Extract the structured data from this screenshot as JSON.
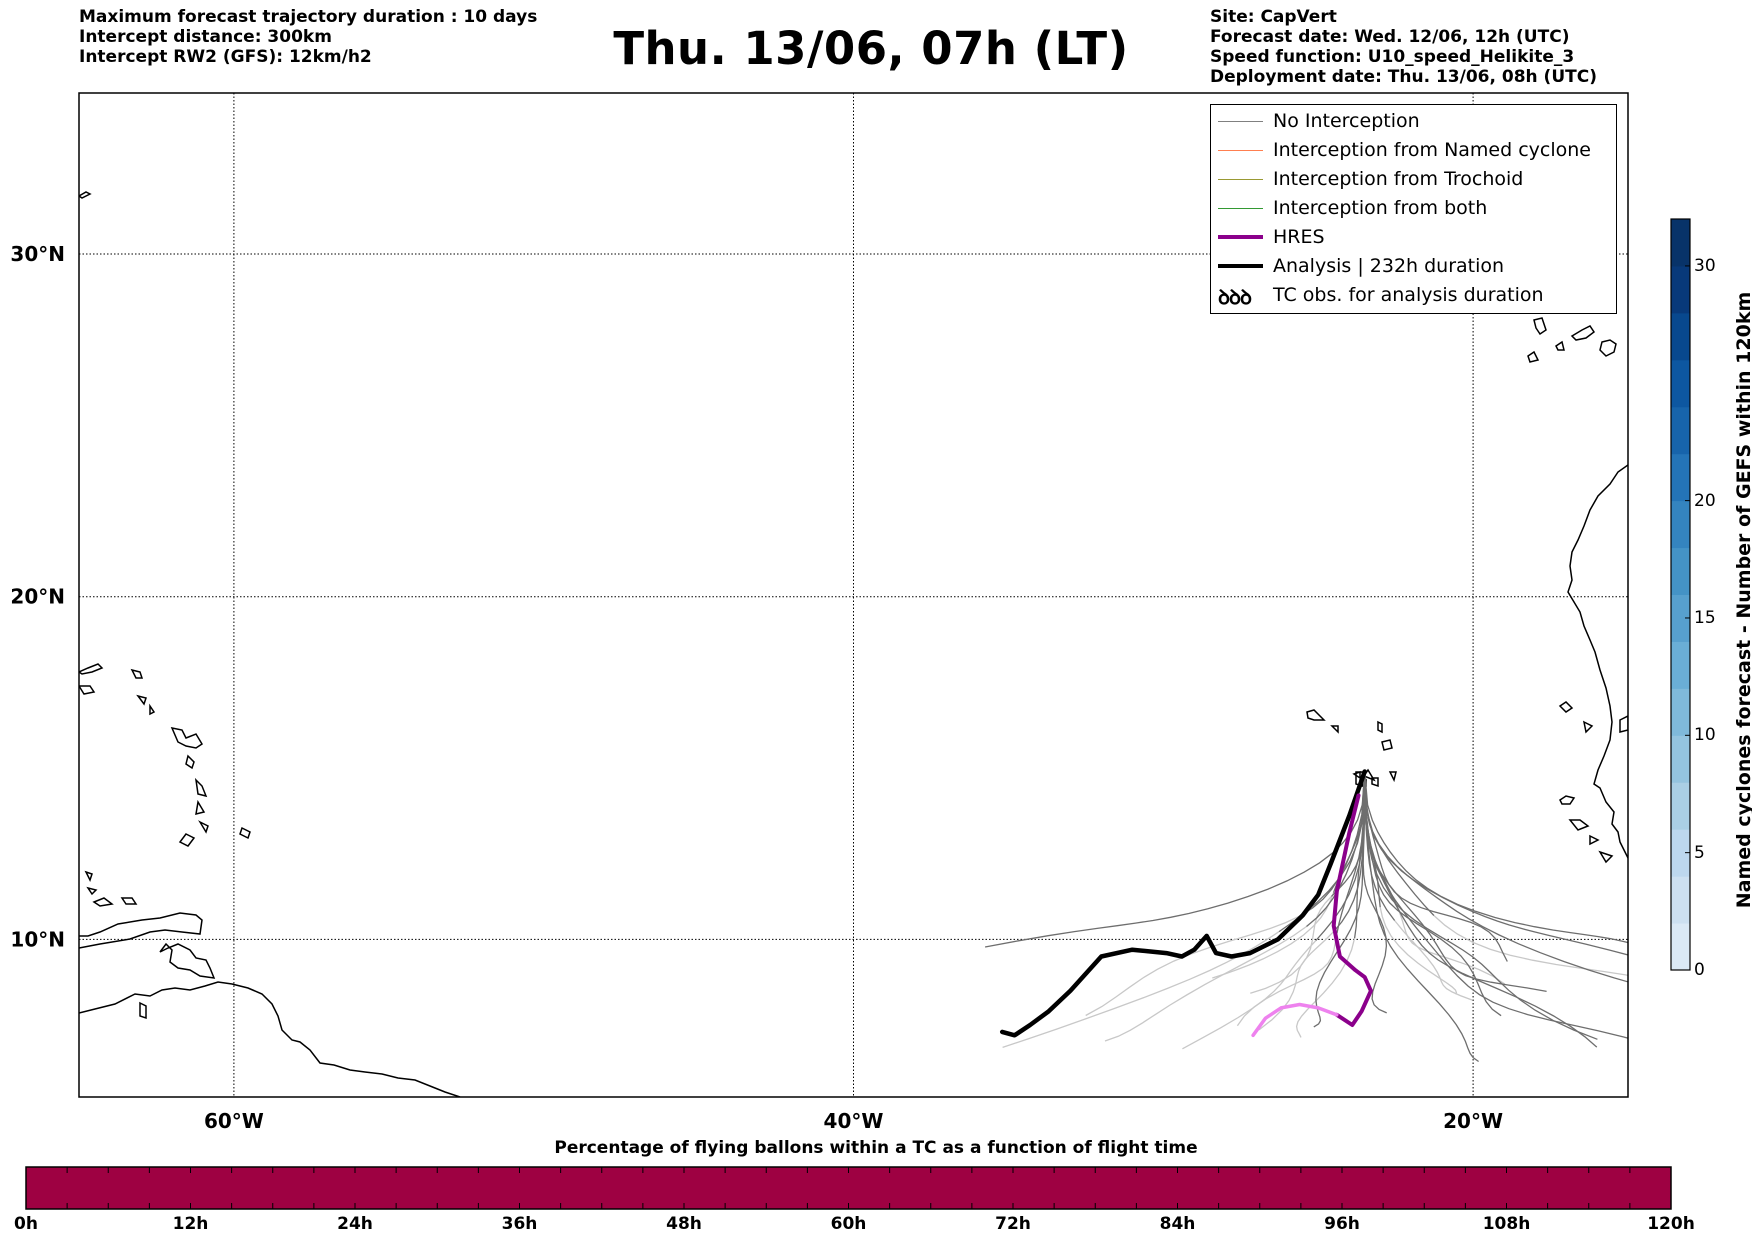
{
  "header": {
    "left_lines": [
      "Maximum forecast trajectory duration : 10 days",
      "Intercept distance: 300km",
      "Intercept RW2 (GFS):  12km/h2"
    ],
    "title": "Thu. 13/06, 07h (LT)",
    "right_lines": [
      "Site: CapVert",
      "Forecast date: Wed. 12/06, 12h (UTC)",
      "Speed function: U10_speed_Helikite_3",
      "Deployment date: Thu. 13/06, 08h (UTC)"
    ]
  },
  "map": {
    "lat_labels": [
      "30°N",
      "20°N",
      "10°N"
    ],
    "lon_labels": [
      "60°W",
      "40°W",
      "20°W"
    ],
    "lat_values": [
      30,
      20,
      10
    ],
    "lon_values": [
      -60,
      -40,
      -20
    ],
    "extent": {
      "lon_min": -65,
      "lon_max": -15,
      "lat_min": 5.4,
      "lat_max": 34.7
    },
    "site": {
      "name": "CapVert",
      "lon": -23.5,
      "lat": 14.9
    }
  },
  "legend": {
    "items": [
      {
        "label": "No Interception",
        "color": "#808080",
        "width": 1
      },
      {
        "label": "Interception from Named cyclone",
        "color": "#ff7f50",
        "width": 1.5
      },
      {
        "label": "Interception from Trochoid",
        "color": "#999933",
        "width": 1.5
      },
      {
        "label": "Interception from both",
        "color": "#339933",
        "width": 1.5
      },
      {
        "label": "HRES",
        "color": "#8b008b",
        "width": 4
      },
      {
        "label": "Analysis | 232h duration",
        "color": "#000000",
        "width": 4
      },
      {
        "label": "TC obs. for analysis duration",
        "color": "#000000",
        "icon": "cyclone-symbols"
      }
    ],
    "cyclone_glyph": "ꝺꝺꝺ"
  },
  "colors": {
    "flight_bar": "#9e0142",
    "hres": "#8b008b",
    "hres_end": "#ee82ee",
    "analysis": "#000000",
    "ensemble_dark": "#6e6e6e",
    "ensemble_light": "#c8c8c8"
  },
  "flight_colorbar": {
    "title": "Percentage of flying ballons within a TC as a function of flight time",
    "labels": [
      "0h",
      "12h",
      "24h",
      "36h",
      "48h",
      "60h",
      "72h",
      "84h",
      "96h",
      "108h",
      "120h"
    ]
  },
  "cyclone_colorbar": {
    "title": "Named cyclones forecast - Number of GEFS within 120km",
    "ticks": [
      "0",
      "5",
      "10",
      "15",
      "20",
      "30"
    ],
    "tick_values": [
      0,
      5,
      10,
      15,
      20,
      30
    ],
    "max": 32,
    "colors": [
      "#dbe9f6",
      "#cde0f1",
      "#bdd7ee",
      "#aacfe5",
      "#94c4df",
      "#7fb9da",
      "#6aaed6",
      "#57a0ce",
      "#4493c6",
      "#3484bf",
      "#2474b7",
      "#1764ab",
      "#0d57a1",
      "#08488e",
      "#08397a",
      "#083369"
    ]
  },
  "trajectories": {
    "analysis": [
      [
        -23.5,
        14.9
      ],
      [
        -24,
        13.6
      ],
      [
        -24.6,
        12.2
      ],
      [
        -25,
        11.3
      ],
      [
        -25.5,
        10.7
      ],
      [
        -26.3,
        10
      ],
      [
        -27.2,
        9.6
      ],
      [
        -27.8,
        9.5
      ],
      [
        -28.3,
        9.6
      ],
      [
        -28.6,
        10.1
      ],
      [
        -29,
        9.7
      ],
      [
        -29.4,
        9.5
      ],
      [
        -29.9,
        9.6
      ],
      [
        -31,
        9.7
      ],
      [
        -32,
        9.5
      ],
      [
        -33,
        8.5
      ],
      [
        -33.7,
        7.9
      ],
      [
        -34.3,
        7.5
      ],
      [
        -34.8,
        7.2
      ],
      [
        -35.2,
        7.3
      ]
    ],
    "hres": [
      [
        -23.7,
        14.2
      ],
      [
        -24,
        13.1
      ],
      [
        -24.4,
        11.4
      ],
      [
        -24.5,
        10.4
      ],
      [
        -24.3,
        9.5
      ],
      [
        -23.8,
        9.1
      ],
      [
        -23.5,
        8.9
      ],
      [
        -23.3,
        8.5
      ],
      [
        -23.6,
        7.9
      ],
      [
        -23.9,
        7.5
      ],
      [
        -24.4,
        7.8
      ]
    ],
    "hres_end": [
      [
        -24.4,
        7.8
      ],
      [
        -25,
        8
      ],
      [
        -25.6,
        8.1
      ],
      [
        -26.2,
        8
      ],
      [
        -26.7,
        7.7
      ],
      [
        -27.1,
        7.2
      ]
    ]
  }
}
